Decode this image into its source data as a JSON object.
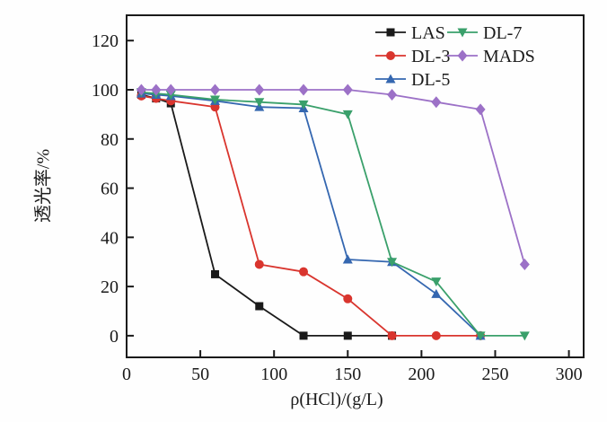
{
  "chart_data": {
    "type": "line",
    "title": "",
    "xlabel": "ρ(HCl)/(g/L)",
    "ylabel": "透光率/%",
    "xlim": [
      0,
      310
    ],
    "ylim": [
      -8.8,
      130.3
    ],
    "xticks": [
      0,
      50,
      100,
      150,
      200,
      250,
      300
    ],
    "yticks": [
      0,
      20,
      40,
      60,
      80,
      100,
      120
    ],
    "grid": false,
    "axis_color": "#1a1a1a",
    "legend_position": "top-right-inside",
    "series": [
      {
        "name": "LAS",
        "color": "#1a1a1a",
        "marker": "square",
        "x": [
          10,
          20,
          30,
          60,
          90,
          120,
          150,
          180
        ],
        "y": [
          98,
          96.5,
          94.5,
          25,
          12,
          0,
          0,
          0
        ]
      },
      {
        "name": "DL-3",
        "color": "#d9352e",
        "marker": "circle",
        "x": [
          10,
          20,
          30,
          60,
          90,
          120,
          150,
          180,
          210,
          240
        ],
        "y": [
          97.5,
          96.5,
          95.5,
          93,
          29,
          26,
          15,
          0,
          0,
          0
        ]
      },
      {
        "name": "DL-5",
        "color": "#3567b0",
        "marker": "triangle-up",
        "x": [
          10,
          20,
          30,
          60,
          90,
          120,
          150,
          180,
          210,
          240
        ],
        "y": [
          98.5,
          98,
          97.5,
          95.5,
          93,
          92.5,
          31,
          30,
          17,
          0
        ]
      },
      {
        "name": "DL-7",
        "color": "#3aa06b",
        "marker": "triangle-down",
        "x": [
          10,
          20,
          30,
          60,
          90,
          120,
          150,
          180,
          210,
          240,
          270
        ],
        "y": [
          99,
          98.5,
          98,
          96,
          95,
          94,
          90,
          30,
          22,
          0,
          0
        ]
      },
      {
        "name": "MADS",
        "color": "#9c71c7",
        "marker": "diamond",
        "x": [
          10,
          20,
          30,
          60,
          90,
          120,
          150,
          180,
          210,
          240,
          270
        ],
        "y": [
          100,
          100,
          100,
          100,
          100,
          100,
          100,
          98,
          95,
          92,
          29
        ]
      }
    ],
    "legend": {
      "columns": [
        [
          "LAS",
          "DL-3",
          "DL-5"
        ],
        [
          "DL-7",
          "MADS"
        ]
      ]
    }
  }
}
